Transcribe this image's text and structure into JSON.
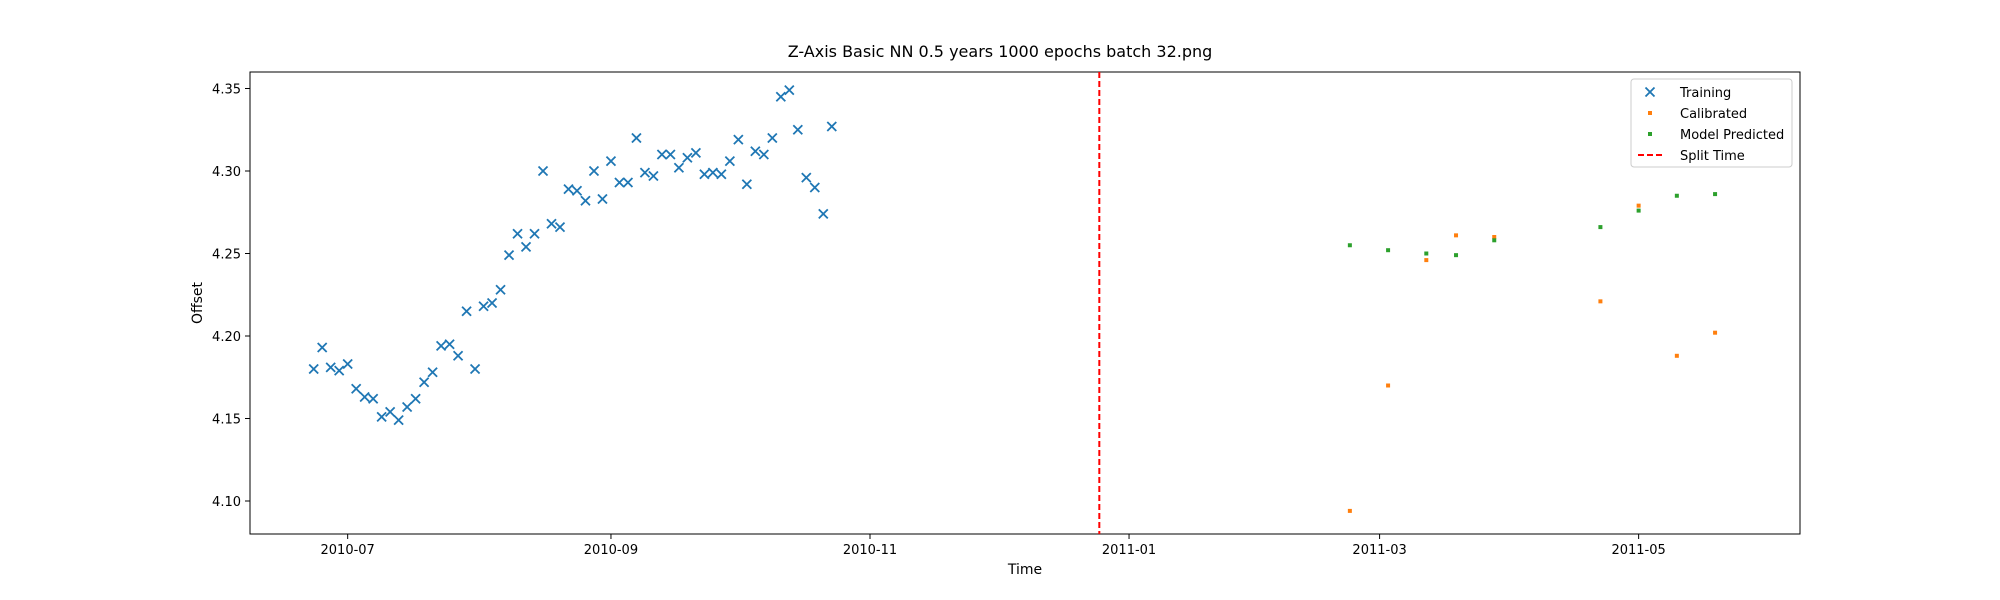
{
  "chart_data": {
    "type": "scatter",
    "title": "Z-Axis Basic NN 0.5 years 1000 epochs batch 32.png",
    "xlabel": "Time",
    "ylabel": "Offset",
    "xlim": [
      "2010-06-08",
      "2011-06-08"
    ],
    "ylim": [
      4.08,
      4.36
    ],
    "xticks": [
      "2010-07-01",
      "2010-09-01",
      "2010-11-01",
      "2011-01-01",
      "2011-03-01",
      "2011-05-01"
    ],
    "xtick_labels": [
      "2010-07",
      "2010-09",
      "2010-11",
      "2011-01",
      "2011-03",
      "2011-05"
    ],
    "yticks": [
      4.1,
      4.15,
      4.2,
      4.25,
      4.3,
      4.35
    ],
    "ytick_labels": [
      "4.10",
      "4.15",
      "4.20",
      "4.25",
      "4.30",
      "4.35"
    ],
    "legend_position": "top-right",
    "split_time": "2010-12-25",
    "series": [
      {
        "name": "Training",
        "color": "#1f77b4",
        "marker": "x",
        "points": [
          [
            "2010-06-23",
            4.18
          ],
          [
            "2010-06-25",
            4.193
          ],
          [
            "2010-06-27",
            4.181
          ],
          [
            "2010-06-29",
            4.179
          ],
          [
            "2010-07-01",
            4.183
          ],
          [
            "2010-07-03",
            4.168
          ],
          [
            "2010-07-05",
            4.163
          ],
          [
            "2010-07-07",
            4.162
          ],
          [
            "2010-07-09",
            4.151
          ],
          [
            "2010-07-11",
            4.154
          ],
          [
            "2010-07-13",
            4.149
          ],
          [
            "2010-07-15",
            4.157
          ],
          [
            "2010-07-17",
            4.162
          ],
          [
            "2010-07-19",
            4.172
          ],
          [
            "2010-07-21",
            4.178
          ],
          [
            "2010-07-23",
            4.194
          ],
          [
            "2010-07-25",
            4.195
          ],
          [
            "2010-07-27",
            4.188
          ],
          [
            "2010-07-29",
            4.215
          ],
          [
            "2010-07-31",
            4.18
          ],
          [
            "2010-08-02",
            4.218
          ],
          [
            "2010-08-04",
            4.22
          ],
          [
            "2010-08-06",
            4.228
          ],
          [
            "2010-08-08",
            4.249
          ],
          [
            "2010-08-10",
            4.262
          ],
          [
            "2010-08-12",
            4.254
          ],
          [
            "2010-08-14",
            4.262
          ],
          [
            "2010-08-16",
            4.3
          ],
          [
            "2010-08-18",
            4.268
          ],
          [
            "2010-08-20",
            4.266
          ],
          [
            "2010-08-22",
            4.289
          ],
          [
            "2010-08-24",
            4.288
          ],
          [
            "2010-08-26",
            4.282
          ],
          [
            "2010-08-28",
            4.3
          ],
          [
            "2010-08-30",
            4.283
          ],
          [
            "2010-09-01",
            4.306
          ],
          [
            "2010-09-03",
            4.293
          ],
          [
            "2010-09-05",
            4.293
          ],
          [
            "2010-09-07",
            4.32
          ],
          [
            "2010-09-09",
            4.299
          ],
          [
            "2010-09-11",
            4.297
          ],
          [
            "2010-09-13",
            4.31
          ],
          [
            "2010-09-15",
            4.31
          ],
          [
            "2010-09-17",
            4.302
          ],
          [
            "2010-09-19",
            4.308
          ],
          [
            "2010-09-21",
            4.311
          ],
          [
            "2010-09-23",
            4.298
          ],
          [
            "2010-09-25",
            4.299
          ],
          [
            "2010-09-27",
            4.298
          ],
          [
            "2010-09-29",
            4.306
          ],
          [
            "2010-10-01",
            4.319
          ],
          [
            "2010-10-03",
            4.292
          ],
          [
            "2010-10-05",
            4.312
          ],
          [
            "2010-10-07",
            4.31
          ],
          [
            "2010-10-09",
            4.32
          ],
          [
            "2010-10-11",
            4.345
          ],
          [
            "2010-10-13",
            4.349
          ],
          [
            "2010-10-15",
            4.325
          ],
          [
            "2010-10-17",
            4.296
          ],
          [
            "2010-10-19",
            4.29
          ],
          [
            "2010-10-21",
            4.274
          ],
          [
            "2010-10-23",
            4.327
          ]
        ]
      },
      {
        "name": "Calibrated",
        "color": "#ff7f0e",
        "marker": "dot",
        "points": [
          [
            "2011-02-22",
            4.094
          ],
          [
            "2011-03-03",
            4.17
          ],
          [
            "2011-03-12",
            4.246
          ],
          [
            "2011-03-19",
            4.261
          ],
          [
            "2011-03-28",
            4.26
          ],
          [
            "2011-04-22",
            4.221
          ],
          [
            "2011-05-01",
            4.279
          ],
          [
            "2011-05-10",
            4.188
          ],
          [
            "2011-05-19",
            4.202
          ]
        ]
      },
      {
        "name": "Model Predicted",
        "color": "#2ca02c",
        "marker": "dot",
        "points": [
          [
            "2011-02-22",
            4.255
          ],
          [
            "2011-03-03",
            4.252
          ],
          [
            "2011-03-12",
            4.25
          ],
          [
            "2011-03-19",
            4.249
          ],
          [
            "2011-03-28",
            4.258
          ],
          [
            "2011-04-22",
            4.266
          ],
          [
            "2011-05-01",
            4.276
          ],
          [
            "2011-05-10",
            4.285
          ],
          [
            "2011-05-19",
            4.286
          ]
        ]
      },
      {
        "name": "Split Time",
        "color": "#ff0000",
        "marker": "dashed-vline"
      }
    ]
  }
}
